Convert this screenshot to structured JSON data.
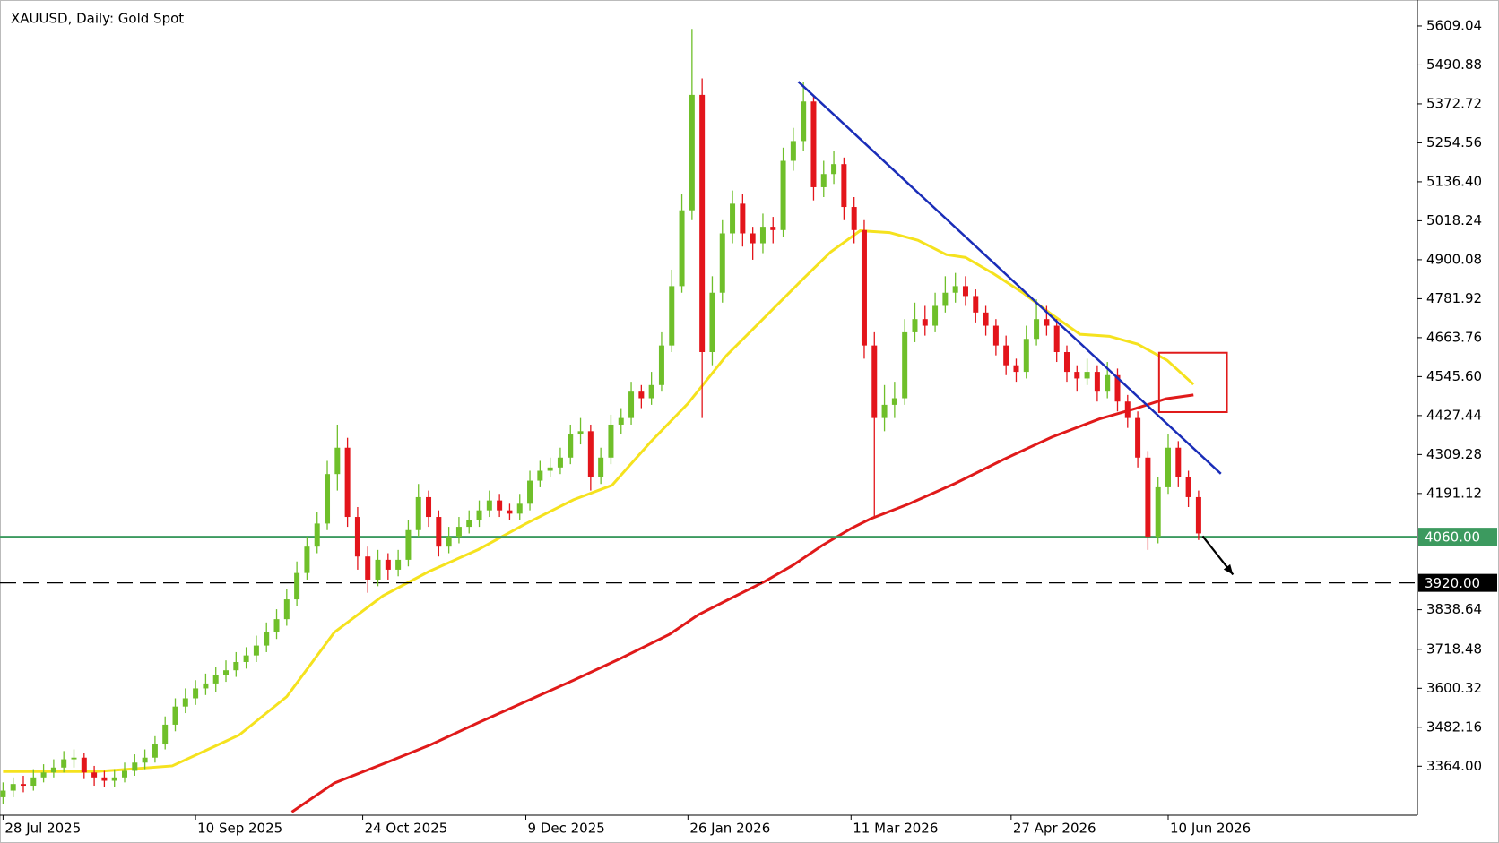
{
  "chart_data": {
    "type": "candlestick",
    "title": "XAUUSD, Daily:  Gold Spot",
    "up_color": "#6fbf2a",
    "down_color": "#e3151b",
    "ylim": [
      3215.4,
      5687.7
    ],
    "xlim": [
      -0.3,
      139.6
    ],
    "yticks": [
      5609.04,
      5490.88,
      5372.72,
      5254.56,
      {
        "value": 5136.4,
        "label": "5136.40"
      },
      5018.24,
      4900.08,
      4781.92,
      4663.76,
      {
        "value": 4545.6,
        "label": "4545.60"
      },
      4427.44,
      4309.28,
      4191.12,
      3838.64,
      3718.48,
      3600.32,
      3482.16,
      {
        "value": 3364,
        "label": "3364.00"
      }
    ],
    "xticks": [
      {
        "value": 0,
        "label": "28 Jul 2025"
      },
      {
        "value": 19,
        "label": "10 Sep 2025"
      },
      {
        "value": 35.5,
        "label": "24 Oct 2025"
      },
      {
        "value": 51.6,
        "label": "9 Dec 2025"
      },
      {
        "value": 67.6,
        "label": "26 Jan 2026"
      },
      {
        "value": 83.7,
        "label": "11 Mar 2026"
      },
      {
        "value": 99.5,
        "label": "27 Apr 2026"
      },
      {
        "value": 115,
        "label": "10 Jun 2026"
      }
    ],
    "open": [
      3270,
      3290,
      3310,
      3305,
      3330,
      3345,
      3360,
      3385,
      3390,
      3345,
      3330,
      3320,
      3330,
      3350,
      3375,
      3390,
      3430,
      3490,
      3545,
      3570,
      3600,
      3615,
      3640,
      3655,
      3680,
      3700,
      3730,
      3770,
      3810,
      3870,
      3950,
      4030,
      4100,
      4250,
      4330,
      4120,
      4000,
      3930,
      3990,
      3960,
      3990,
      4080,
      4180,
      4120,
      4030,
      4060,
      4090,
      4110,
      4140,
      4170,
      4140,
      4130,
      4160,
      4230,
      4260,
      4270,
      4300,
      4370,
      4380,
      4240,
      4300,
      4400,
      4420,
      4500,
      4480,
      4520,
      4640,
      4820,
      5050,
      5400,
      4620,
      4800,
      4980,
      5070,
      4980,
      4950,
      5000,
      4990,
      5200,
      5260,
      5380,
      5120,
      5160,
      5190,
      5060,
      4990,
      4640,
      4420,
      4460,
      4480,
      4680,
      4720,
      4700,
      4760,
      4800,
      4820,
      4790,
      4740,
      4700,
      4640,
      4580,
      4560,
      4660,
      4720,
      4700,
      4620,
      4560,
      4540,
      4560,
      4500,
      4550,
      4470,
      4420,
      4300,
      4060,
      4210,
      4330,
      4240,
      4180
    ],
    "high": [
      3315,
      3330,
      3335,
      3355,
      3370,
      3385,
      3410,
      3415,
      3405,
      3365,
      3350,
      3355,
      3375,
      3400,
      3415,
      3455,
      3515,
      3570,
      3600,
      3625,
      3645,
      3665,
      3685,
      3710,
      3725,
      3760,
      3800,
      3840,
      3900,
      3985,
      4060,
      4135,
      4290,
      4400,
      4360,
      4150,
      4030,
      4020,
      4010,
      4020,
      4110,
      4220,
      4200,
      4140,
      4090,
      4120,
      4140,
      4170,
      4200,
      4190,
      4160,
      4190,
      4260,
      4290,
      4300,
      4330,
      4400,
      4420,
      4400,
      4330,
      4430,
      4450,
      4530,
      4520,
      4560,
      4680,
      4870,
      5100,
      5600,
      5450,
      4850,
      5020,
      5110,
      5100,
      5000,
      5040,
      5030,
      5240,
      5300,
      5440,
      5400,
      5200,
      5230,
      5210,
      5090,
      5020,
      4680,
      4520,
      4530,
      4720,
      4770,
      4760,
      4800,
      4850,
      4860,
      4850,
      4810,
      4760,
      4720,
      4670,
      4600,
      4700,
      4780,
      4760,
      4720,
      4640,
      4580,
      4600,
      4580,
      4590,
      4570,
      4490,
      4440,
      4320,
      4240,
      4370,
      4350,
      4260,
      4200
    ],
    "low": [
      3250,
      3270,
      3285,
      3290,
      3315,
      3330,
      3345,
      3360,
      3325,
      3305,
      3300,
      3300,
      3315,
      3335,
      3355,
      3375,
      3415,
      3470,
      3525,
      3550,
      3580,
      3590,
      3620,
      3635,
      3660,
      3680,
      3710,
      3750,
      3790,
      3850,
      3930,
      4010,
      4080,
      4200,
      4090,
      3960,
      3890,
      3910,
      3930,
      3940,
      3970,
      4060,
      4090,
      4000,
      4010,
      4040,
      4070,
      4090,
      4120,
      4120,
      4110,
      4110,
      4140,
      4210,
      4240,
      4250,
      4280,
      4340,
      4200,
      4220,
      4280,
      4370,
      4400,
      4450,
      4460,
      4500,
      4620,
      4800,
      5020,
      4420,
      4580,
      4770,
      4950,
      4940,
      4900,
      4920,
      4950,
      4970,
      5170,
      5230,
      5080,
      5090,
      5130,
      5020,
      4950,
      4600,
      4120,
      4380,
      4420,
      4460,
      4650,
      4670,
      4680,
      4740,
      4770,
      4760,
      4710,
      4670,
      4610,
      4550,
      4530,
      4540,
      4640,
      4670,
      4590,
      4530,
      4500,
      4520,
      4470,
      4480,
      4440,
      4390,
      4270,
      4020,
      4040,
      4190,
      4210,
      4150,
      4050
    ],
    "close": [
      3290,
      3310,
      3305,
      3330,
      3345,
      3360,
      3385,
      3390,
      3345,
      3330,
      3320,
      3330,
      3350,
      3375,
      3390,
      3430,
      3490,
      3545,
      3570,
      3600,
      3615,
      3640,
      3655,
      3680,
      3700,
      3730,
      3770,
      3810,
      3870,
      3950,
      4030,
      4100,
      4250,
      4330,
      4120,
      4000,
      3930,
      3990,
      3960,
      3990,
      4080,
      4180,
      4120,
      4030,
      4060,
      4090,
      4110,
      4140,
      4170,
      4140,
      4130,
      4160,
      4230,
      4260,
      4270,
      4300,
      4370,
      4380,
      4240,
      4300,
      4400,
      4420,
      4500,
      4480,
      4520,
      4640,
      4820,
      5050,
      5400,
      4620,
      4800,
      4980,
      5070,
      4980,
      4950,
      5000,
      4990,
      5200,
      5260,
      5380,
      5120,
      5160,
      5190,
      5060,
      4990,
      4640,
      4420,
      4460,
      4480,
      4680,
      4720,
      4700,
      4760,
      4800,
      4820,
      4790,
      4740,
      4700,
      4640,
      4580,
      4560,
      4660,
      4720,
      4700,
      4620,
      4560,
      4540,
      4560,
      4500,
      4550,
      4470,
      4420,
      4300,
      4060,
      4210,
      4330,
      4240,
      4180,
      4070
    ],
    "overlays": [
      {
        "color": "#f5e21e",
        "x": [
          0,
          9.2,
          16.7,
          23.3,
          28,
          32.7,
          37.5,
          42,
          46.9,
          51.6,
          56.3,
          60.1,
          63.9,
          67.6,
          71.4,
          75.2,
          79,
          81.7,
          84.6,
          87.5,
          90.3,
          93.1,
          95,
          97.8,
          100.7,
          103.6,
          106.3,
          109.2,
          112,
          114.9,
          117.5
        ],
        "values": [
          3347.7,
          3347.7,
          3365,
          3458.5,
          3575,
          3770,
          3881,
          3954,
          4021,
          4099.5,
          4172,
          4216,
          4347,
          4464,
          4609.5,
          4726,
          4843,
          4924,
          4988,
          4982.5,
          4959,
          4915.5,
          4907,
          4857,
          4799,
          4732,
          4674,
          4668,
          4644,
          4595,
          4522
        ]
      },
      {
        "color": "#e01a1a",
        "x": [
          28.5,
          32.7,
          37.5,
          42.2,
          46.9,
          51.6,
          56.3,
          61,
          65.8,
          68.6,
          71.4,
          75.2,
          78,
          80.8,
          83.7,
          85.6,
          89.3,
          94,
          98.8,
          103.5,
          108.2,
          111.8,
          114.8,
          117.5
        ],
        "values": [
          3225.3,
          3313,
          3371,
          3429,
          3496,
          3560.5,
          3624.6,
          3691.6,
          3764.4,
          3822.7,
          3866.4,
          3924.7,
          3974.2,
          4032.5,
          4085,
          4114,
          4158,
          4222,
          4295,
          4362,
          4417,
          4449,
          4478.4,
          4490
        ]
      }
    ],
    "trendline": {
      "color": "#1a2db8",
      "x": [
        78.5,
        120.2
      ],
      "values": [
        5440,
        4251
      ]
    },
    "box": {
      "color": "#e01a1a",
      "x": [
        114.1,
        120.8
      ],
      "values": [
        4618,
        4438
      ]
    },
    "arrow": {
      "color": "#000000",
      "x": [
        118.4,
        121.4
      ],
      "values": [
        4062,
        3945
      ]
    },
    "levels": [
      {
        "value": 4060,
        "label": "4060.00",
        "color": "#3c9a5f",
        "dash": false
      },
      {
        "value": 3920,
        "label": "3920.00",
        "color": "#000000",
        "dash": true
      }
    ]
  }
}
